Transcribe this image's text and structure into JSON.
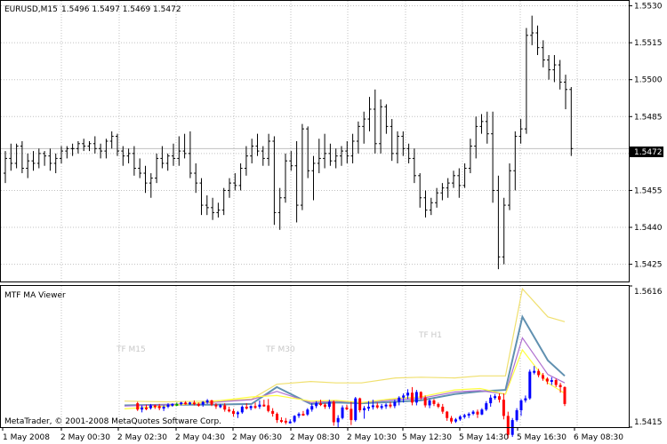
{
  "chart_data": [
    {
      "type": "bar",
      "title": "EURUSD,M15",
      "ohlc_header": "1.5496 1.5497 1.5469 1.5472",
      "current_price": "1.5472",
      "ylim": [
        1.5418,
        1.5532
      ],
      "y_ticks": [
        "1.5530",
        "1.5515",
        "1.5500",
        "1.5485",
        "1.5470",
        "1.5455",
        "1.5440",
        "1.5425"
      ],
      "x_ticks": [
        "1 May 2008",
        "2 May 00:30",
        "2 May 02:30",
        "2 May 04:30",
        "2 May 06:30",
        "2 May 08:30",
        "2 May 10:30",
        "5 May 12:30",
        "5 May 14:30",
        "5 May 16:30",
        "6 May 08:30"
      ],
      "grid": true,
      "bars": [
        [
          1.5462,
          1.5471,
          1.5458,
          1.5468
        ],
        [
          1.5468,
          1.5474,
          1.5463,
          1.5466
        ],
        [
          1.5466,
          1.5474,
          1.5464,
          1.5473
        ],
        [
          1.5473,
          1.5475,
          1.5462,
          1.5464
        ],
        [
          1.5464,
          1.547,
          1.546,
          1.5467
        ],
        [
          1.5467,
          1.5471,
          1.5463,
          1.5466
        ],
        [
          1.5466,
          1.5472,
          1.5464,
          1.547
        ],
        [
          1.547,
          1.5471,
          1.5465,
          1.5469
        ],
        [
          1.5469,
          1.5472,
          1.5463,
          1.5466
        ],
        [
          1.5466,
          1.547,
          1.5462,
          1.5468
        ],
        [
          1.5468,
          1.5473,
          1.5466,
          1.5471
        ],
        [
          1.5471,
          1.5473,
          1.5468,
          1.5472
        ],
        [
          1.5472,
          1.5474,
          1.5469,
          1.5472
        ],
        [
          1.5472,
          1.5475,
          1.547,
          1.5474
        ],
        [
          1.5474,
          1.5476,
          1.5471,
          1.5473
        ],
        [
          1.5473,
          1.5475,
          1.5471,
          1.5474
        ],
        [
          1.5474,
          1.5477,
          1.547,
          1.5472
        ],
        [
          1.5472,
          1.5474,
          1.5468,
          1.5471
        ],
        [
          1.5471,
          1.5476,
          1.5468,
          1.5475
        ],
        [
          1.5475,
          1.5479,
          1.5472,
          1.5477
        ],
        [
          1.5477,
          1.5478,
          1.5469,
          1.5471
        ],
        [
          1.5471,
          1.5473,
          1.5465,
          1.5469
        ],
        [
          1.5469,
          1.5472,
          1.5466,
          1.547
        ],
        [
          1.547,
          1.5473,
          1.5461,
          1.5464
        ],
        [
          1.5464,
          1.5468,
          1.546,
          1.5462
        ],
        [
          1.5462,
          1.5465,
          1.5454,
          1.5458
        ],
        [
          1.5458,
          1.5462,
          1.5452,
          1.546
        ],
        [
          1.546,
          1.547,
          1.5458,
          1.5468
        ],
        [
          1.5468,
          1.5473,
          1.5464,
          1.5466
        ],
        [
          1.5466,
          1.547,
          1.5463,
          1.5469
        ],
        [
          1.5469,
          1.5474,
          1.5465,
          1.5468
        ],
        [
          1.5468,
          1.5477,
          1.5465,
          1.5471
        ],
        [
          1.5471,
          1.5478,
          1.5468,
          1.547
        ],
        [
          1.547,
          1.5479,
          1.546,
          1.5462
        ],
        [
          1.5462,
          1.5466,
          1.5454,
          1.5458
        ],
        [
          1.5458,
          1.546,
          1.5445,
          1.5449
        ],
        [
          1.5449,
          1.5453,
          1.5445,
          1.5448
        ],
        [
          1.5448,
          1.5452,
          1.5443,
          1.5446
        ],
        [
          1.5446,
          1.545,
          1.5444,
          1.5447
        ],
        [
          1.5447,
          1.5456,
          1.5445,
          1.5455
        ],
        [
          1.5455,
          1.546,
          1.5452,
          1.5458
        ],
        [
          1.5458,
          1.5462,
          1.5455,
          1.5457
        ],
        [
          1.5457,
          1.5466,
          1.5455,
          1.5464
        ],
        [
          1.5464,
          1.5473,
          1.5461,
          1.5469
        ],
        [
          1.5469,
          1.5476,
          1.5466,
          1.5473
        ],
        [
          1.5473,
          1.5478,
          1.5469,
          1.5471
        ],
        [
          1.5471,
          1.5473,
          1.5465,
          1.5468
        ],
        [
          1.5468,
          1.5478,
          1.5465,
          1.5475
        ],
        [
          1.5475,
          1.5477,
          1.5441,
          1.5446
        ],
        [
          1.5446,
          1.5456,
          1.5439,
          1.5452
        ],
        [
          1.5452,
          1.547,
          1.545,
          1.5467
        ],
        [
          1.5467,
          1.5471,
          1.5463,
          1.5465
        ],
        [
          1.5465,
          1.5475,
          1.5442,
          1.5449
        ],
        [
          1.5449,
          1.5482,
          1.5447,
          1.548
        ],
        [
          1.548,
          1.5481,
          1.546,
          1.5463
        ],
        [
          1.5463,
          1.5469,
          1.5451,
          1.5466
        ],
        [
          1.5466,
          1.5476,
          1.5462,
          1.5468
        ],
        [
          1.5468,
          1.5478,
          1.5464,
          1.547
        ],
        [
          1.547,
          1.5474,
          1.5465,
          1.5467
        ],
        [
          1.5467,
          1.5472,
          1.5464,
          1.5469
        ],
        [
          1.5469,
          1.5473,
          1.5465,
          1.5471
        ],
        [
          1.5471,
          1.5475,
          1.5466,
          1.5469
        ],
        [
          1.5469,
          1.5478,
          1.5466,
          1.5475
        ],
        [
          1.5475,
          1.5483,
          1.547,
          1.5481
        ],
        [
          1.5481,
          1.5487,
          1.5474,
          1.5484
        ],
        [
          1.5484,
          1.5493,
          1.5479,
          1.5488
        ],
        [
          1.5488,
          1.5496,
          1.547,
          1.5474
        ],
        [
          1.5474,
          1.5492,
          1.547,
          1.5489
        ],
        [
          1.5489,
          1.549,
          1.5478,
          1.5481
        ],
        [
          1.5481,
          1.5484,
          1.5467,
          1.547
        ],
        [
          1.547,
          1.5479,
          1.5466,
          1.5477
        ],
        [
          1.5477,
          1.5479,
          1.5469,
          1.5472
        ],
        [
          1.5472,
          1.5474,
          1.5466,
          1.5468
        ],
        [
          1.5468,
          1.5472,
          1.5458,
          1.5461
        ],
        [
          1.5461,
          1.5462,
          1.5448,
          1.5452
        ],
        [
          1.5452,
          1.5455,
          1.5444,
          1.5447
        ],
        [
          1.5447,
          1.5452,
          1.5445,
          1.545
        ],
        [
          1.545,
          1.5456,
          1.5448,
          1.5454
        ],
        [
          1.5454,
          1.5458,
          1.5451,
          1.5456
        ],
        [
          1.5456,
          1.546,
          1.5452,
          1.5458
        ],
        [
          1.5458,
          1.5463,
          1.5456,
          1.5461
        ],
        [
          1.5461,
          1.5464,
          1.5452,
          1.5457
        ],
        [
          1.5457,
          1.5466,
          1.5456,
          1.5464
        ],
        [
          1.5464,
          1.5476,
          1.5462,
          1.5473
        ],
        [
          1.5473,
          1.5485,
          1.5468,
          1.5481
        ],
        [
          1.5481,
          1.5486,
          1.5478,
          1.5483
        ],
        [
          1.5483,
          1.5487,
          1.5474,
          1.5478
        ],
        [
          1.5478,
          1.5487,
          1.545,
          1.5455
        ],
        [
          1.5455,
          1.5461,
          1.5423,
          1.5428
        ],
        [
          1.5428,
          1.5452,
          1.5425,
          1.5449
        ],
        [
          1.5449,
          1.5466,
          1.5447,
          1.5463
        ],
        [
          1.5463,
          1.5479,
          1.5455,
          1.5477
        ],
        [
          1.5477,
          1.5484,
          1.5474,
          1.548
        ],
        [
          1.548,
          1.5521,
          1.5478,
          1.5518
        ],
        [
          1.5518,
          1.5526,
          1.5514,
          1.5519
        ],
        [
          1.5519,
          1.5522,
          1.551,
          1.5513
        ],
        [
          1.5513,
          1.5516,
          1.5505,
          1.5508
        ],
        [
          1.5508,
          1.551,
          1.55,
          1.5504
        ],
        [
          1.5504,
          1.551,
          1.5499,
          1.5506
        ],
        [
          1.5506,
          1.5508,
          1.5496,
          1.5499
        ],
        [
          1.5499,
          1.5502,
          1.5488,
          1.5496
        ],
        [
          1.5496,
          1.5497,
          1.5469,
          1.5472
        ]
      ]
    },
    {
      "type": "line",
      "title": "MTF MA Viewer",
      "ylim": [
        1.5415,
        1.5616
      ],
      "y_ticks": [
        "1.5616",
        "1.5415"
      ],
      "tf_labels": [
        "TF M15",
        "TF M30",
        "TF H1"
      ],
      "copyright": "MetaTrader, © 2001-2008 MetaQuotes Software Corp.",
      "series": [
        {
          "color": "#f0e070",
          "x": [
            0,
            10,
            20,
            30,
            36,
            44,
            50,
            56,
            64,
            70,
            78,
            84,
            90,
            94,
            100,
            104
          ],
          "values": [
            1.5452,
            1.5451,
            1.5452,
            1.5455,
            1.5476,
            1.548,
            1.5478,
            1.5478,
            1.5485,
            1.5486,
            1.5485,
            1.5488,
            1.5488,
            1.5612,
            1.5572,
            1.5565
          ]
        },
        {
          "color": "#6090b0",
          "x": [
            0,
            10,
            20,
            30,
            36,
            44,
            50,
            56,
            64,
            70,
            78,
            84,
            90,
            94,
            100,
            104
          ],
          "values": [
            1.5446,
            1.5447,
            1.5447,
            1.5448,
            1.5472,
            1.5448,
            1.545,
            1.5449,
            1.5451,
            1.5453,
            1.5462,
            1.5466,
            1.5468,
            1.5572,
            1.551,
            1.5488
          ]
        },
        {
          "color": "#b070d0",
          "x": [
            0,
            10,
            20,
            30,
            36,
            44,
            50,
            56,
            64,
            70,
            78,
            84,
            90,
            94,
            100,
            104
          ],
          "values": [
            1.5445,
            1.5447,
            1.545,
            1.5454,
            1.5466,
            1.545,
            1.5452,
            1.545,
            1.5454,
            1.5456,
            1.5465,
            1.5467,
            1.5462,
            1.5542,
            1.549,
            1.5478
          ]
        },
        {
          "color": "#ffff40",
          "x": [
            0,
            10,
            20,
            30,
            36,
            44,
            50,
            56,
            64,
            70,
            78,
            84,
            90,
            94,
            100,
            104
          ],
          "values": [
            1.5441,
            1.5445,
            1.5451,
            1.5458,
            1.546,
            1.5452,
            1.5453,
            1.545,
            1.5456,
            1.5458,
            1.5468,
            1.547,
            1.5462,
            1.5525,
            1.5478,
            1.5463
          ]
        }
      ],
      "candle_colors": {
        "up": "#0000ff",
        "down": "#ff0000",
        "neutral": "#00a000"
      }
    }
  ]
}
